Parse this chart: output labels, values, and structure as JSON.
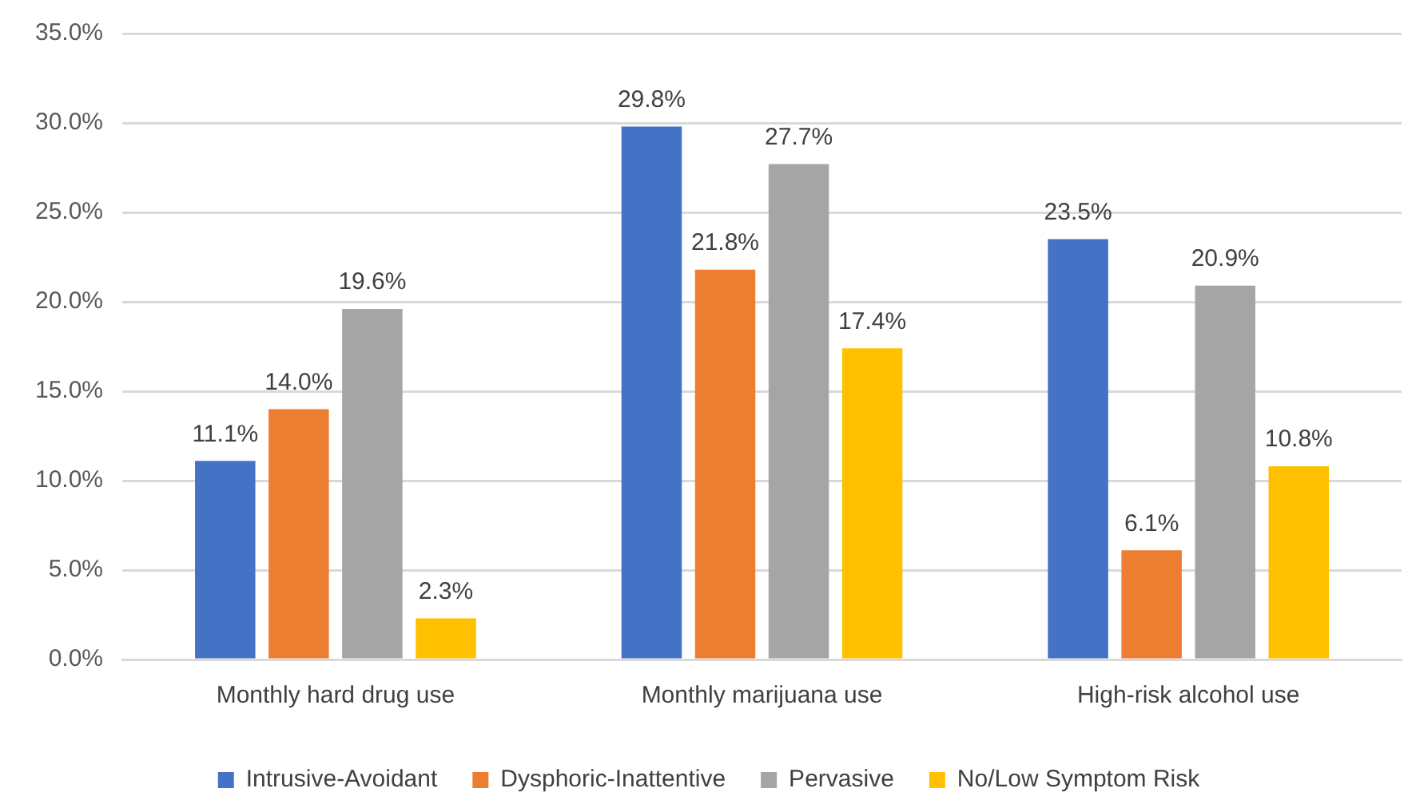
{
  "chart_data": {
    "type": "bar",
    "categories": [
      "Monthly hard drug use",
      "Monthly marijuana use",
      "High-risk alcohol use"
    ],
    "series": [
      {
        "name": "Intrusive-Avoidant",
        "color": "#4472c4",
        "values": [
          11.1,
          29.8,
          23.5
        ],
        "value_labels": [
          "11.1%",
          "29.8%",
          "23.5%"
        ]
      },
      {
        "name": "Dysphoric-Inattentive",
        "color": "#ed7d31",
        "values": [
          14.0,
          21.8,
          6.1
        ],
        "value_labels": [
          "14.0%",
          "21.8%",
          "6.1%"
        ]
      },
      {
        "name": "Pervasive",
        "color": "#a5a5a5",
        "values": [
          19.6,
          27.7,
          20.9
        ],
        "value_labels": [
          "19.6%",
          "27.7%",
          "20.9%"
        ]
      },
      {
        "name": "No/Low Symptom Risk",
        "color": "#ffc000",
        "values": [
          2.3,
          17.4,
          10.8
        ],
        "value_labels": [
          "2.3%",
          "17.4%",
          "10.8%"
        ]
      }
    ],
    "ylim": [
      0,
      35
    ],
    "yticks": [
      {
        "value": 0,
        "label": "0.0%"
      },
      {
        "value": 5,
        "label": "5.0%"
      },
      {
        "value": 10,
        "label": "10.0%"
      },
      {
        "value": 15,
        "label": "15.0%"
      },
      {
        "value": 20,
        "label": "20.0%"
      },
      {
        "value": 25,
        "label": "25.0%"
      },
      {
        "value": 30,
        "label": "30.0%"
      },
      {
        "value": 35,
        "label": "35.0%"
      }
    ],
    "grid": "y",
    "legend": "bottom"
  }
}
